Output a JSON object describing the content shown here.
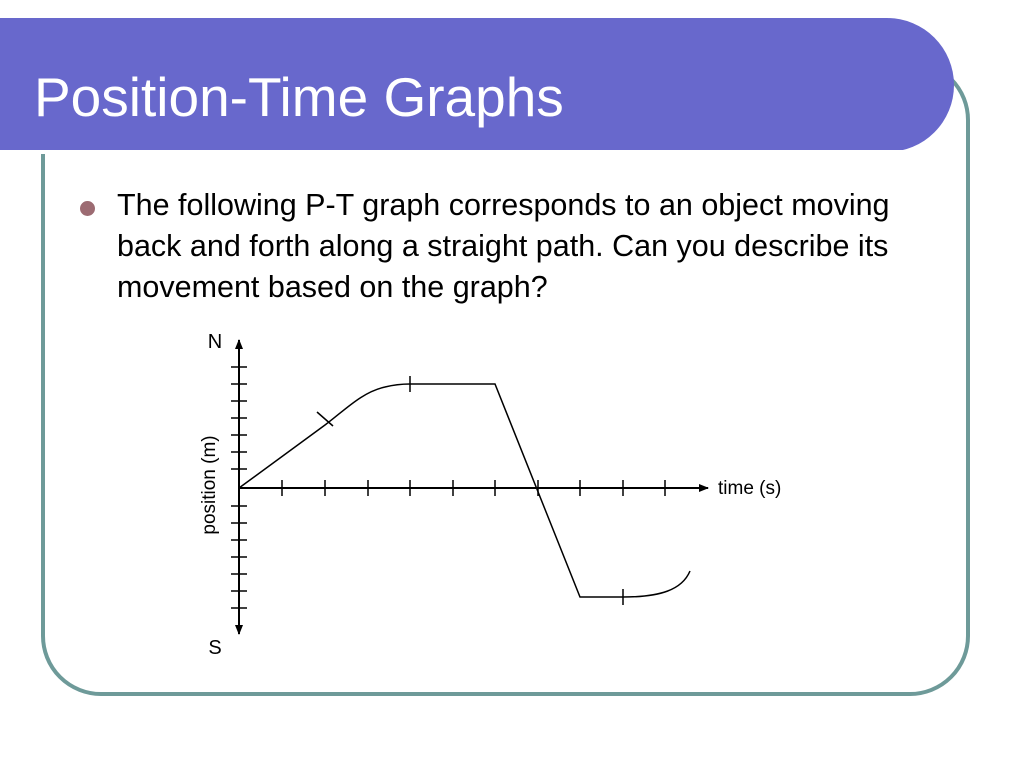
{
  "slide": {
    "title": "Position-Time Graphs",
    "bullet": "The following P-T graph corresponds to an object moving back and forth along a straight path.  Can you describe its movement based on the graph?"
  },
  "graph": {
    "y_top_label": "N",
    "y_bottom_label": "S",
    "y_axis_label": "position (m)",
    "x_axis_label": "time (s)"
  },
  "colors": {
    "title_bar": "#6868cc",
    "frame_border": "#6e9a99",
    "bullet": "#9c6b72"
  }
}
